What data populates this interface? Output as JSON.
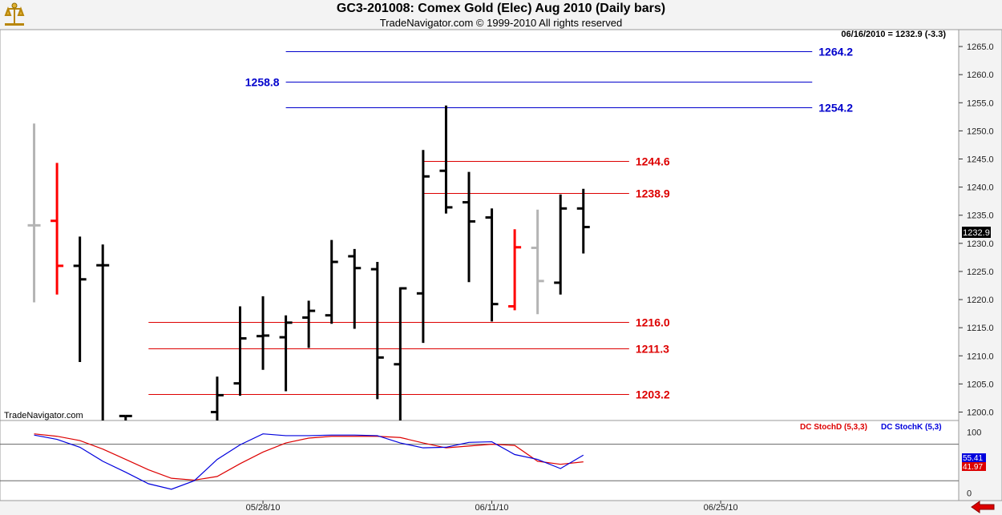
{
  "header": {
    "title": "GC3-201008:  Comex Gold (Elec) Aug 2010  (Daily bars)",
    "subtitle": "TradeNavigator.com © 1999-2010 All rights reserved",
    "logo_icon": "trade-navigator-logo-icon"
  },
  "status": {
    "readout": "06/16/2010 = 1232.9 (-3.3)",
    "last_price": "1232.9"
  },
  "watermark": "TradeNavigator.com",
  "colors": {
    "up_bar": "#000000",
    "red_bar": "#ff0000",
    "gray_bar": "#b4b4b4",
    "blue_level": "#0000cc",
    "red_level": "#dd0000",
    "stoch_d": "#dd0000",
    "stoch_k": "#0000dd"
  },
  "footer": {
    "back_icon": "back-arrow-icon"
  },
  "chart_data": [
    {
      "type": "ohlc",
      "title": "GC3-201008:  Comex Gold (Elec) Aug 2010  (Daily bars)",
      "ylim": [
        1198.5,
        1268
      ],
      "yticks": [
        1200.0,
        1205.0,
        1210.0,
        1215.0,
        1220.0,
        1225.0,
        1230.0,
        1235.0,
        1240.0,
        1245.0,
        1250.0,
        1255.0,
        1260.0,
        1265.0
      ],
      "xticks": [
        {
          "label": "05/28/10",
          "index": 10
        },
        {
          "label": "06/11/10",
          "index": 20
        },
        {
          "label": "06/25/10",
          "index": 30
        }
      ],
      "x_slots": 38,
      "bars": [
        {
          "i": 0,
          "o": 1233.2,
          "h": 1251.3,
          "l": 1219.5,
          "c": 1233.2,
          "color": "gray"
        },
        {
          "i": 1,
          "o": 1234.0,
          "h": 1244.3,
          "l": 1220.9,
          "c": 1226.0,
          "color": "red"
        },
        {
          "i": 2,
          "o": 1226.0,
          "h": 1231.2,
          "l": 1208.9,
          "c": 1223.6,
          "color": "black"
        },
        {
          "i": 3,
          "o": 1226.1,
          "h": 1229.8,
          "l": 1198.5,
          "c": 1226.1,
          "color": "black"
        },
        {
          "i": 4,
          "o": 1199.3,
          "h": 1199.3,
          "l": 1198.5,
          "c": 1199.3,
          "color": "black"
        },
        {
          "i": 8,
          "o": 1200.0,
          "h": 1206.3,
          "l": 1198.5,
          "c": 1203.0,
          "color": "black"
        },
        {
          "i": 9,
          "o": 1205.1,
          "h": 1218.8,
          "l": 1202.9,
          "c": 1213.1,
          "color": "black"
        },
        {
          "i": 10,
          "o": 1213.5,
          "h": 1220.6,
          "l": 1207.5,
          "c": 1213.6,
          "color": "black"
        },
        {
          "i": 11,
          "o": 1213.3,
          "h": 1217.2,
          "l": 1203.7,
          "c": 1215.9,
          "color": "black"
        },
        {
          "i": 12,
          "o": 1216.8,
          "h": 1219.8,
          "l": 1211.4,
          "c": 1218.0,
          "color": "black"
        },
        {
          "i": 13,
          "o": 1217.2,
          "h": 1230.6,
          "l": 1215.7,
          "c": 1226.7,
          "color": "black"
        },
        {
          "i": 14,
          "o": 1227.7,
          "h": 1229.0,
          "l": 1214.8,
          "c": 1225.6,
          "color": "black"
        },
        {
          "i": 15,
          "o": 1225.4,
          "h": 1226.7,
          "l": 1202.3,
          "c": 1209.7,
          "color": "black"
        },
        {
          "i": 16,
          "o": 1208.5,
          "h": 1222.2,
          "l": 1198.5,
          "c": 1222.0,
          "color": "black"
        },
        {
          "i": 17,
          "o": 1221.1,
          "h": 1246.6,
          "l": 1212.3,
          "c": 1241.9,
          "color": "black"
        },
        {
          "i": 18,
          "o": 1242.9,
          "h": 1254.5,
          "l": 1235.3,
          "c": 1236.4,
          "color": "black"
        },
        {
          "i": 19,
          "o": 1237.3,
          "h": 1242.7,
          "l": 1223.1,
          "c": 1233.9,
          "color": "black"
        },
        {
          "i": 20,
          "o": 1234.6,
          "h": 1236.2,
          "l": 1216.1,
          "c": 1219.2,
          "color": "black"
        },
        {
          "i": 21,
          "o": 1218.8,
          "h": 1232.5,
          "l": 1218.1,
          "c": 1229.3,
          "color": "red"
        },
        {
          "i": 22,
          "o": 1229.2,
          "h": 1236.0,
          "l": 1217.4,
          "c": 1223.3,
          "color": "gray"
        },
        {
          "i": 23,
          "o": 1223.0,
          "h": 1238.7,
          "l": 1220.9,
          "c": 1236.2,
          "color": "black"
        },
        {
          "i": 24,
          "o": 1236.2,
          "h": 1239.7,
          "l": 1228.2,
          "c": 1232.9,
          "color": "black"
        }
      ],
      "levels": [
        {
          "value": "1264.2",
          "color": "blue",
          "label_side": "right",
          "from": 12,
          "to": 35
        },
        {
          "value": "1258.8",
          "color": "blue",
          "label_side": "left",
          "from": 12,
          "to": 35
        },
        {
          "value": "1254.2",
          "color": "blue",
          "label_side": "right",
          "from": 12,
          "to": 35
        },
        {
          "value": "1244.6",
          "color": "red",
          "label_side": "right",
          "from": 18,
          "to": 27
        },
        {
          "value": "1238.9",
          "color": "red",
          "label_side": "right",
          "from": 18,
          "to": 27
        },
        {
          "value": "1216.0",
          "color": "red",
          "label_side": "right",
          "from": 6,
          "to": 27
        },
        {
          "value": "1211.3",
          "color": "red",
          "label_side": "right",
          "from": 6,
          "to": 27
        },
        {
          "value": "1203.2",
          "color": "red",
          "label_side": "right",
          "from": 6,
          "to": 27
        }
      ]
    },
    {
      "type": "line",
      "ylim": [
        -10,
        115
      ],
      "yticks": [
        0,
        100
      ],
      "guides": [
        20,
        80
      ],
      "legend": [
        "DC StochD (5,3,3)",
        "DC StochK (5,3)"
      ],
      "series": [
        {
          "name": "DC StochD (5,3,3)",
          "color": "red",
          "x": [
            0,
            1,
            2,
            3,
            4,
            5,
            6,
            7,
            8,
            9,
            10,
            11,
            12,
            13,
            14,
            15,
            16,
            17,
            18,
            19,
            20,
            21,
            22,
            23,
            24
          ],
          "values": [
            97,
            93,
            86,
            72,
            55,
            38,
            24,
            21,
            27,
            48,
            67,
            82,
            90,
            93,
            93,
            93,
            91,
            82,
            74,
            77,
            80,
            78,
            52,
            47,
            51
          ]
        },
        {
          "name": "DC StochK (5,3)",
          "color": "blue",
          "x": [
            0,
            1,
            2,
            3,
            4,
            5,
            6,
            7,
            8,
            9,
            10,
            11,
            12,
            13,
            14,
            15,
            16,
            17,
            18,
            19,
            20,
            21,
            22,
            23,
            24
          ],
          "values": [
            95,
            88,
            75,
            52,
            34,
            15,
            6,
            20,
            55,
            79,
            97,
            94,
            94,
            95,
            95,
            94,
            82,
            74,
            75,
            83,
            84,
            63,
            55,
            40,
            62
          ]
        }
      ],
      "readouts": [
        "55.41",
        "41.97"
      ]
    }
  ]
}
